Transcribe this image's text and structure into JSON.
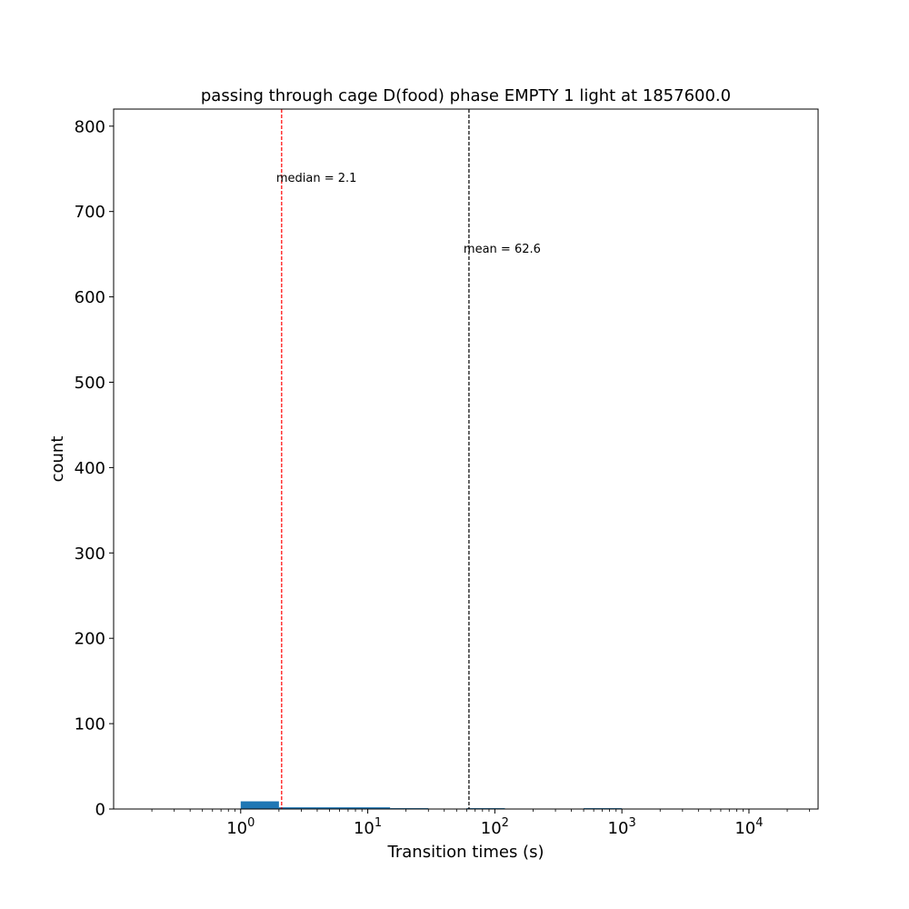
{
  "chart_data": {
    "type": "bar",
    "title": "passing through cage D(food) phase EMPTY 1 light at 1857600.0",
    "xlabel": "Transition times (s)",
    "ylabel": "count",
    "xscale": "log",
    "xlim": [
      0.1,
      35000
    ],
    "ylim": [
      0,
      820
    ],
    "grid": false,
    "legend": "none",
    "bar_color": "#1f77b4",
    "y_ticks": [
      0,
      100,
      200,
      300,
      400,
      500,
      600,
      700,
      800
    ],
    "x_ticks": [
      {
        "value": 1,
        "base": "10",
        "exp": "0"
      },
      {
        "value": 10,
        "base": "10",
        "exp": "1"
      },
      {
        "value": 100,
        "base": "10",
        "exp": "2"
      },
      {
        "value": 1000,
        "base": "10",
        "exp": "3"
      },
      {
        "value": 10000,
        "base": "10",
        "exp": "4"
      }
    ],
    "bins": [
      {
        "x0": 1.0,
        "x1": 2.0,
        "count": 9
      },
      {
        "x0": 2.0,
        "x1": 4.0,
        "count": 2
      },
      {
        "x0": 4.0,
        "x1": 8.0,
        "count": 2
      },
      {
        "x0": 8.0,
        "x1": 15.0,
        "count": 2
      },
      {
        "x0": 15.0,
        "x1": 30.0,
        "count": 1
      },
      {
        "x0": 60.0,
        "x1": 120.0,
        "count": 1
      },
      {
        "x0": 500.0,
        "x1": 1000.0,
        "count": 1
      }
    ],
    "reference_lines": [
      {
        "name": "median",
        "value": 2.1,
        "label": "median =  2.1",
        "color": "#ff0000",
        "label_y": 740
      },
      {
        "name": "mean",
        "value": 62.6,
        "label": "mean = 62.6",
        "color": "#000000",
        "label_y": 657
      }
    ]
  }
}
